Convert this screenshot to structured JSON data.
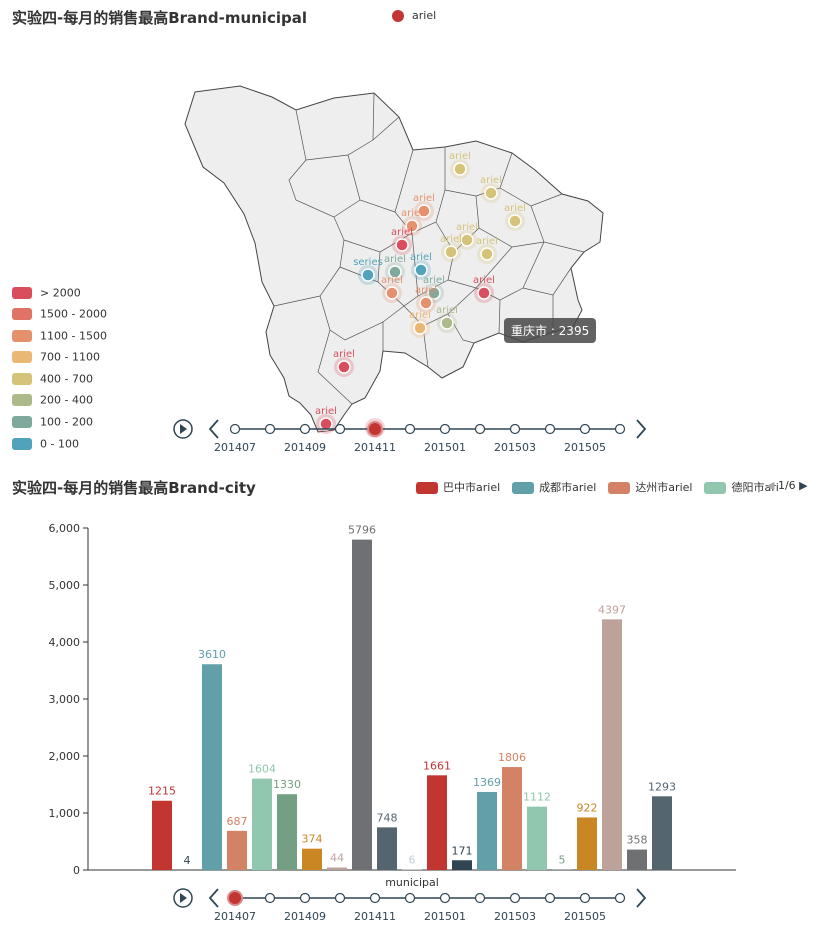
{
  "map_panel": {
    "title": "实验四-每月的销售最高Brand-municipal",
    "series_legend": "ariel",
    "visual_map": [
      {
        "label": "> 2000",
        "color": "#d94e5d"
      },
      {
        "label": "1500 - 2000",
        "color": "#e07366"
      },
      {
        "label": "1100 - 1500",
        "color": "#e5916e"
      },
      {
        "label": "700 - 1100",
        "color": "#eab774"
      },
      {
        "label": "400 - 700",
        "color": "#d6c37a"
      },
      {
        "label": "200 - 400",
        "color": "#acb98a"
      },
      {
        "label": "100 - 200",
        "color": "#7ea99c"
      },
      {
        "label": "0 - 100",
        "color": "#50a3ba"
      }
    ],
    "tooltip": "重庆市 : 2395",
    "point_label": "ariel",
    "point_label_alt": "series"
  },
  "timeline": {
    "labels": [
      "201407",
      "",
      "201409",
      "",
      "201411",
      "",
      "201501",
      "",
      "201503",
      "",
      "201505",
      ""
    ],
    "map_current_index": 4,
    "bar_current_index": 0
  },
  "chart_data": [
    {
      "type": "scatter",
      "title": "实验四-每月的销售最高Brand-municipal",
      "series_name": "ariel",
      "value_shown": {
        "region": "重庆市",
        "value": 2395
      }
    },
    {
      "type": "bar",
      "title": "实验四-每月的销售最高Brand-city",
      "xlabel": "municipal",
      "ylim": [
        0,
        6000
      ],
      "yticks": [
        "0",
        "1,000",
        "2,000",
        "3,000",
        "4,000",
        "5,000",
        "6,000"
      ],
      "legend": [
        {
          "name": "巴中市ariel",
          "color": "#c23531"
        },
        {
          "name": "成都市ariel",
          "color": "#61a0a8"
        },
        {
          "name": "达州市ariel",
          "color": "#d48265"
        },
        {
          "name": "德阳市ari",
          "color": "#91c7ae"
        }
      ],
      "legend_page": "1/6",
      "bars": [
        {
          "value": 1215,
          "color": "#c23531"
        },
        {
          "value": 4,
          "color": "#2f4554"
        },
        {
          "value": 3610,
          "color": "#61a0a8"
        },
        {
          "value": 687,
          "color": "#d48265"
        },
        {
          "value": 1604,
          "color": "#91c7ae"
        },
        {
          "value": 1330,
          "color": "#749f83"
        },
        {
          "value": 374,
          "color": "#ca8622"
        },
        {
          "value": 44,
          "color": "#bda29a"
        },
        {
          "value": 5796,
          "color": "#6e7074"
        },
        {
          "value": 748,
          "color": "#546570"
        },
        {
          "value": 6,
          "color": "#c4ccd3"
        },
        {
          "value": 1661,
          "color": "#c23531"
        },
        {
          "value": 171,
          "color": "#2f4554"
        },
        {
          "value": 1369,
          "color": "#61a0a8"
        },
        {
          "value": 1806,
          "color": "#d48265"
        },
        {
          "value": 1112,
          "color": "#91c7ae"
        },
        {
          "value": 5,
          "color": "#749f83"
        },
        {
          "value": 922,
          "color": "#ca8622"
        },
        {
          "value": 4397,
          "color": "#bda29a"
        },
        {
          "value": 358,
          "color": "#6e7074"
        },
        {
          "value": 1293,
          "color": "#546570"
        }
      ]
    }
  ]
}
